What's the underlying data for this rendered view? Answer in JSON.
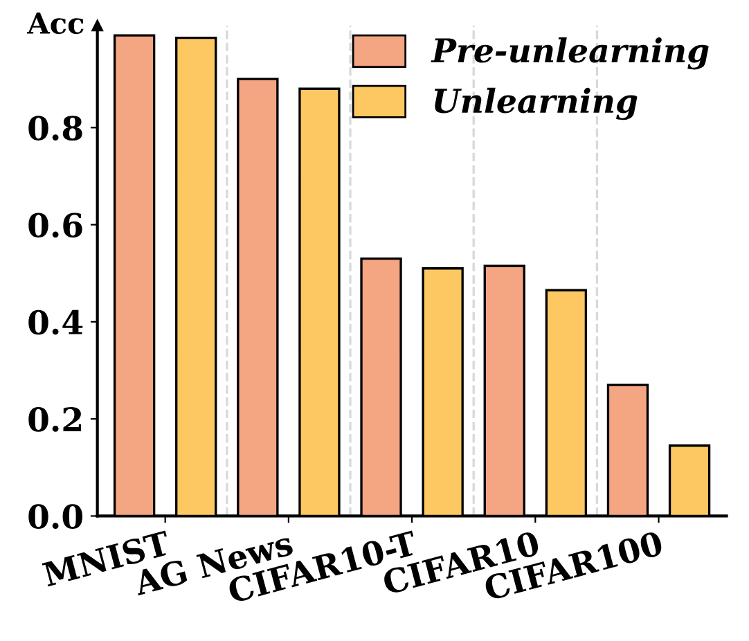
{
  "chart_data": {
    "type": "bar",
    "ylabel": "Acc",
    "categories": [
      "MNIST",
      "AG News",
      "CIFAR10-T",
      "CIFAR10",
      "CIFAR100"
    ],
    "series": [
      {
        "name": "Pre-unlearning",
        "color": "#f4a582",
        "values": [
          0.99,
          0.9,
          0.53,
          0.515,
          0.27
        ]
      },
      {
        "name": "Unlearning",
        "color": "#fdc862",
        "values": [
          0.985,
          0.88,
          0.51,
          0.465,
          0.145
        ]
      }
    ],
    "ylim": [
      0,
      1.01
    ],
    "yticks": [
      {
        "value": 0,
        "label": "0.0"
      },
      {
        "value": 0.2,
        "label": "0.2"
      },
      {
        "value": 0.4,
        "label": "0.4"
      },
      {
        "value": 0.6,
        "label": "0.6"
      },
      {
        "value": 0.8,
        "label": "0.8"
      }
    ],
    "grid": false,
    "legend": "top right"
  }
}
